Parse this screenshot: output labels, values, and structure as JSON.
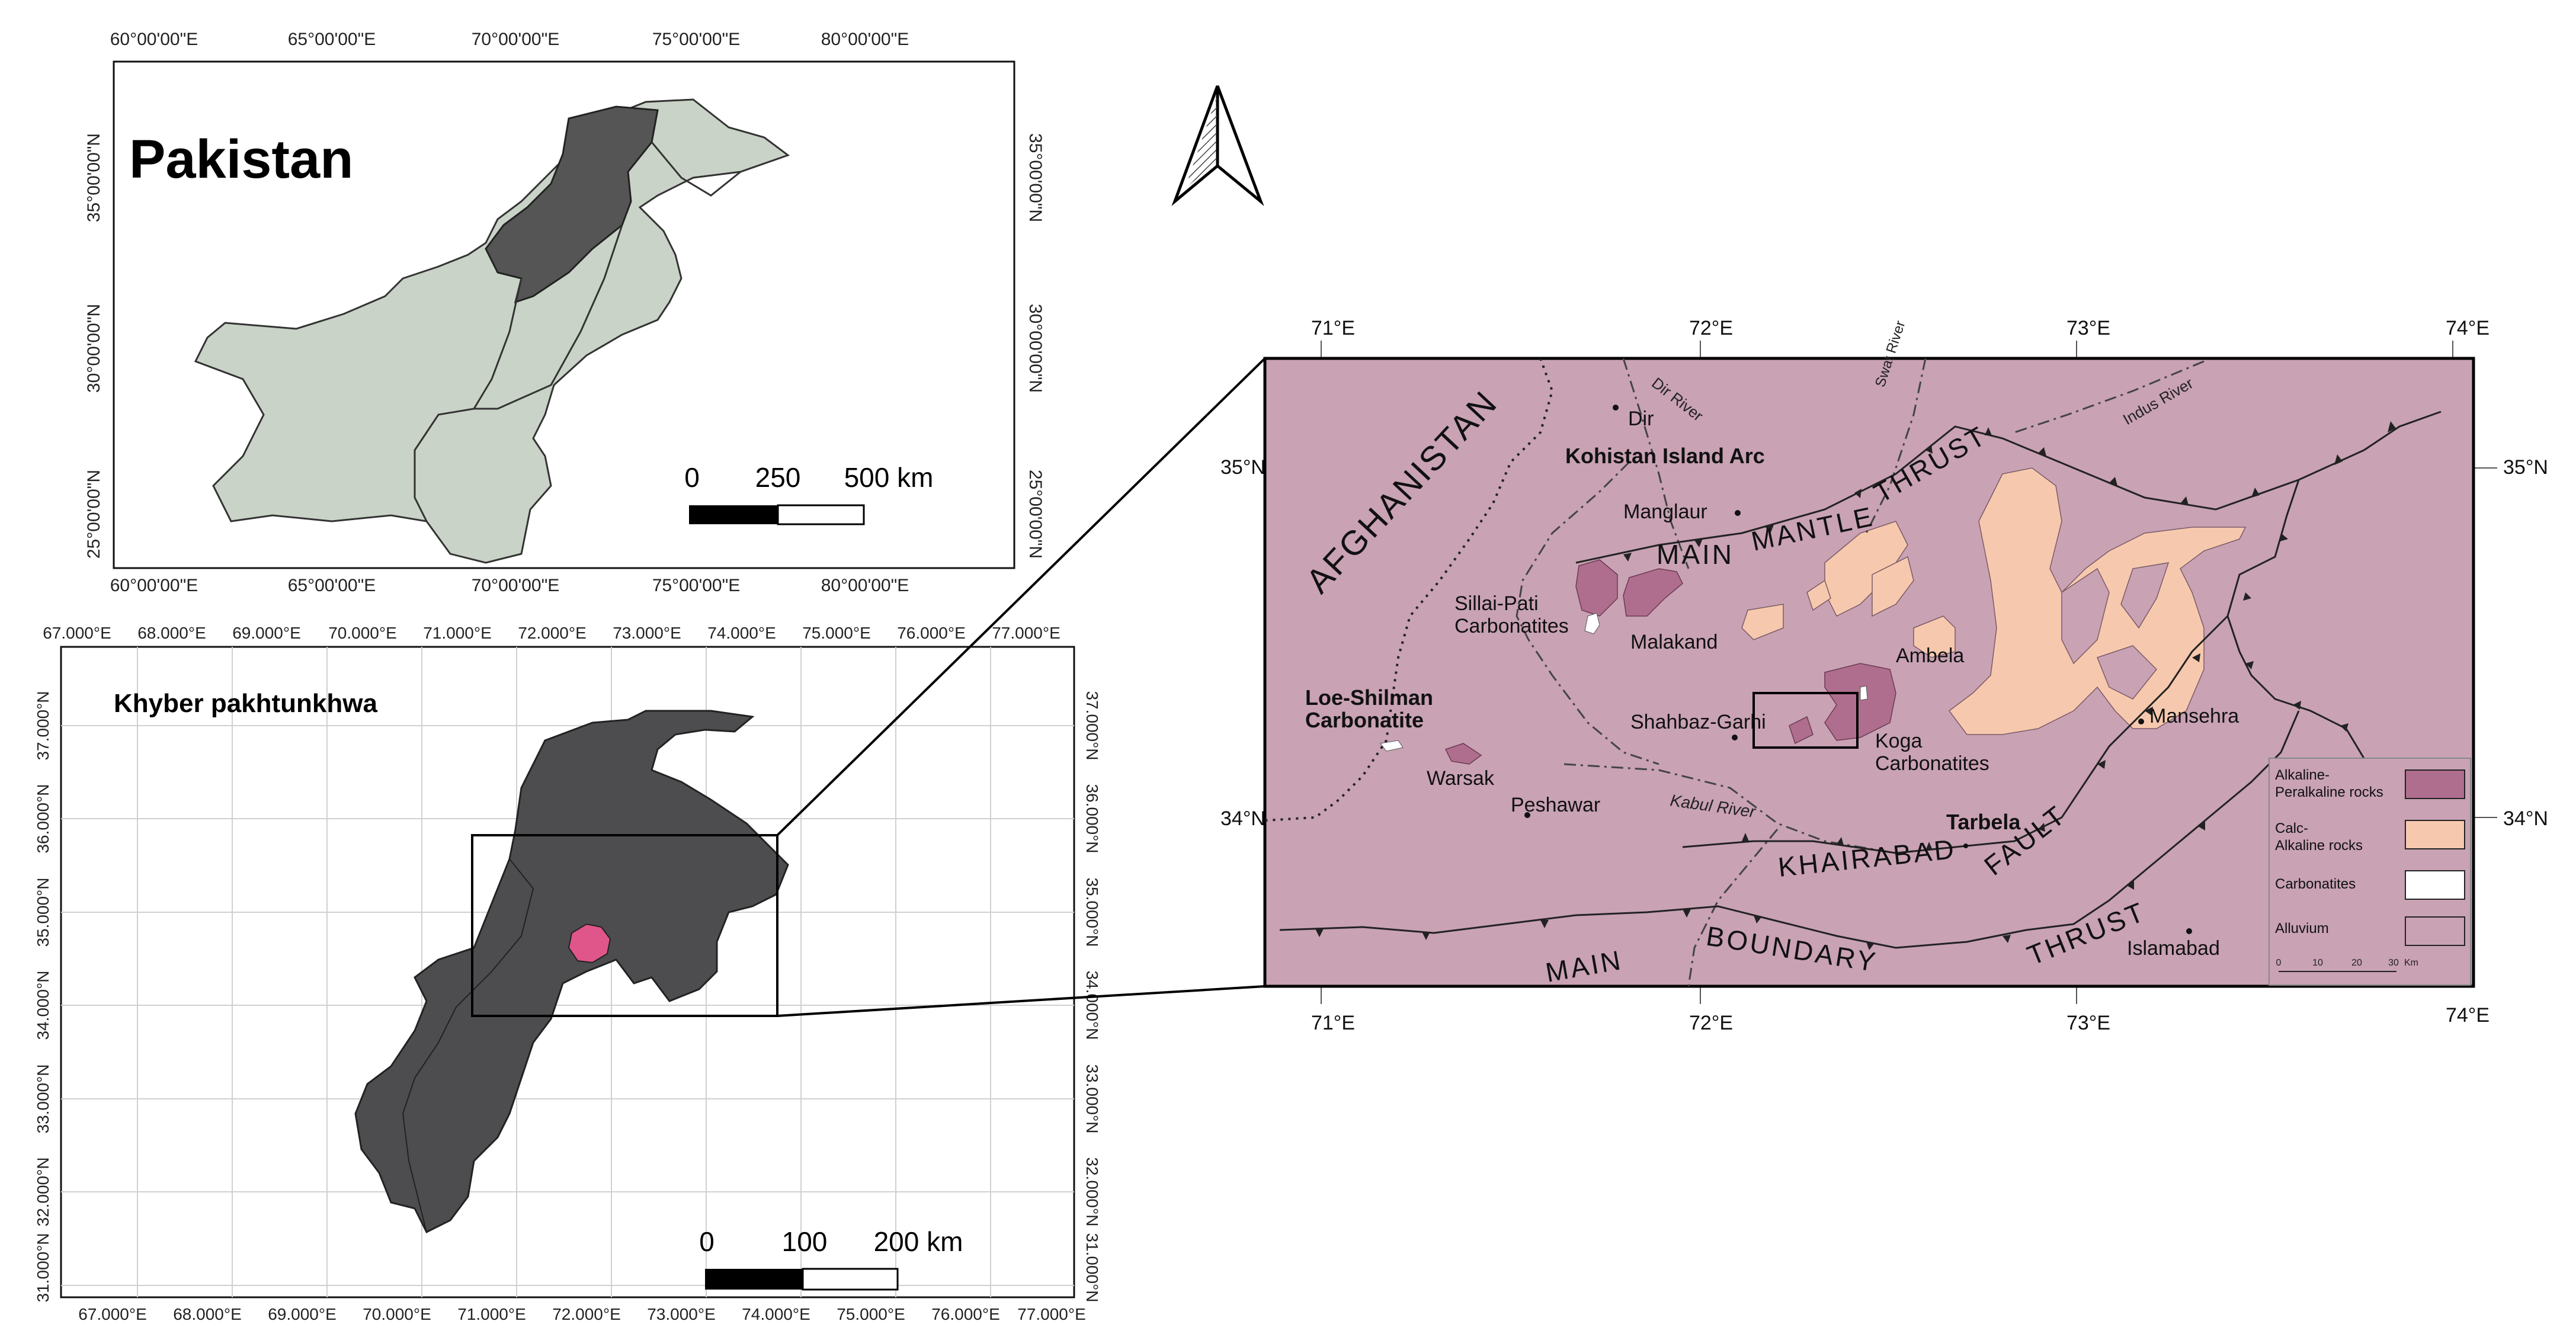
{
  "pakistan_map": {
    "title": "Pakistan",
    "top_ticks": [
      "60°00'00\"E",
      "65°00'00\"E",
      "70°00'00\"E",
      "75°00'00\"E",
      "80°00'00\"E"
    ],
    "bottom_ticks": [
      "60°00'00\"E",
      "65°00'00\"E",
      "70°00'00\"E",
      "75°00'00\"E",
      "80°00'00\"E"
    ],
    "left_ticks": [
      "35°00'00\"N",
      "30°00'00\"N",
      "25°00'00\"N"
    ],
    "right_ticks": [
      "35°00'00\"N",
      "30°00'00\"N",
      "25°00'00\"N"
    ],
    "scale": {
      "zero": "0",
      "mid": "250",
      "end": "500 km"
    },
    "colors": {
      "land": "#c9d3c7",
      "kp": "#555555",
      "border": "#333333"
    }
  },
  "kp_map": {
    "title": "Khyber pakhtunkhwa",
    "top_ticks": [
      "67.000°E",
      "68.000°E",
      "69.000°E",
      "70.000°E",
      "71.000°E",
      "72.000°E",
      "73.000°E",
      "74.000°E",
      "75.000°E",
      "76.000°E",
      "77.000°E"
    ],
    "bottom_ticks": [
      "67.000°E",
      "68.000°E",
      "69.000°E",
      "70.000°E",
      "71.000°E",
      "72.000°E",
      "73.000°E",
      "74.000°E",
      "75.000°E",
      "76.000°E",
      "77.000°E"
    ],
    "left_ticks": [
      "37.000°N",
      "36.000°N",
      "35.000°N",
      "34.000°N",
      "33.000°N",
      "32.000°N",
      "31.000°N"
    ],
    "right_ticks": [
      "37.000°N",
      "36.000°N",
      "35.000°N",
      "34.000°N",
      "33.000°N",
      "32.000°N",
      "31.000°N"
    ],
    "scale": {
      "zero": "0",
      "mid": "100",
      "end": "200 km"
    },
    "colors": {
      "province": "#4d4d4f",
      "study_area": "#e0558a",
      "grid": "#d0d0d0"
    }
  },
  "north_arrow": {
    "icon": "north-arrow-icon"
  },
  "geology_map": {
    "top_ticks": [
      "71°E",
      "72°E",
      "73°E",
      "74°E"
    ],
    "bottom_ticks": [
      "71°E",
      "72°E",
      "73°E",
      "74°E"
    ],
    "left_ticks": [
      "35°N",
      "34°N"
    ],
    "right_ticks": [
      "35°N",
      "34°N"
    ],
    "labels": {
      "afghanistan": "AFGHANISTAN",
      "kohistan": "Kohistan Island Arc",
      "dir": "Dir",
      "dir_river": "Dir River",
      "swat_river": "Swat River",
      "indus_river": "Indus River",
      "manglaur": "Manglaur",
      "main": "MAIN",
      "mantle": "MANTLE",
      "thrust_top": "THRUST",
      "sillai_pati_1": "Sillai-Pati",
      "sillai_pati_2": "Carbonatites",
      "malakand": "Malakand",
      "ambela": "Ambela",
      "loe_shilman_1": "Loe-Shilman",
      "loe_shilman_2": "Carbonatite",
      "shahbaz_garhi": "Shahbaz-Garhi",
      "koga_1": "Koga",
      "koga_2": "Carbonatites",
      "mansehra": "Mansehra",
      "warsak": "Warsak",
      "peshawar": "Peshawar",
      "kabul_river": "Kabul River",
      "tarbela": "Tarbela",
      "khairabad": "KHAIRABAD",
      "fault": "FAULT",
      "main_bottom": "MAIN",
      "boundary": "BOUNDARY",
      "thrust_bottom": "THRUST",
      "islamabad": "Islamabad"
    },
    "legend": [
      {
        "label_1": "Alkaline-",
        "label_2": "Peralkaline rocks",
        "color": "#b06e8e"
      },
      {
        "label_1": "Calc-",
        "label_2": "Alkaline rocks",
        "color": "#f6c9ae"
      },
      {
        "label_1": "Carbonatites",
        "label_2": "",
        "color": "#ffffff"
      },
      {
        "label_1": "Alluvium",
        "label_2": "",
        "color": "#c9a2b4"
      }
    ],
    "legend_scale": {
      "t0": "0",
      "t1": "10",
      "t2": "20",
      "t3": "30",
      "unit": "Km"
    },
    "colors": {
      "background": "#c9a2b4",
      "calc": "#f6c9ae",
      "alkaline": "#b06e8e",
      "carbonatite": "#ffffff"
    }
  }
}
